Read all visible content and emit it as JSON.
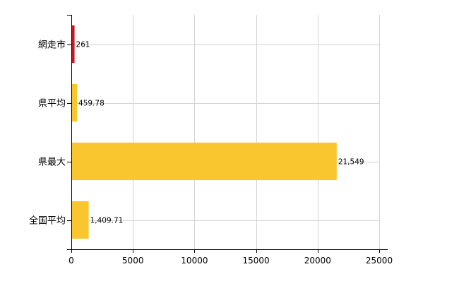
{
  "chart_data": {
    "type": "bar",
    "orientation": "horizontal",
    "categories": [
      "網走市",
      "県平均",
      "県最大",
      "全国平均"
    ],
    "values": [
      261,
      459.78,
      21549,
      1409.71
    ],
    "value_labels": [
      "261",
      "459.78",
      "21,549",
      "1,409.71"
    ],
    "bar_colors": [
      "#c8161e",
      "#f9c630",
      "#f9c630",
      "#f9c630"
    ],
    "xlim": [
      0,
      25000
    ],
    "xticks": [
      0,
      5000,
      10000,
      15000,
      20000,
      25000
    ],
    "xtick_labels": [
      "0",
      "5000",
      "10000",
      "15000",
      "20000",
      "25000"
    ],
    "grid": true,
    "gridline_color": "#d3d3d3",
    "axis_color": "#000000",
    "legend": "none"
  }
}
